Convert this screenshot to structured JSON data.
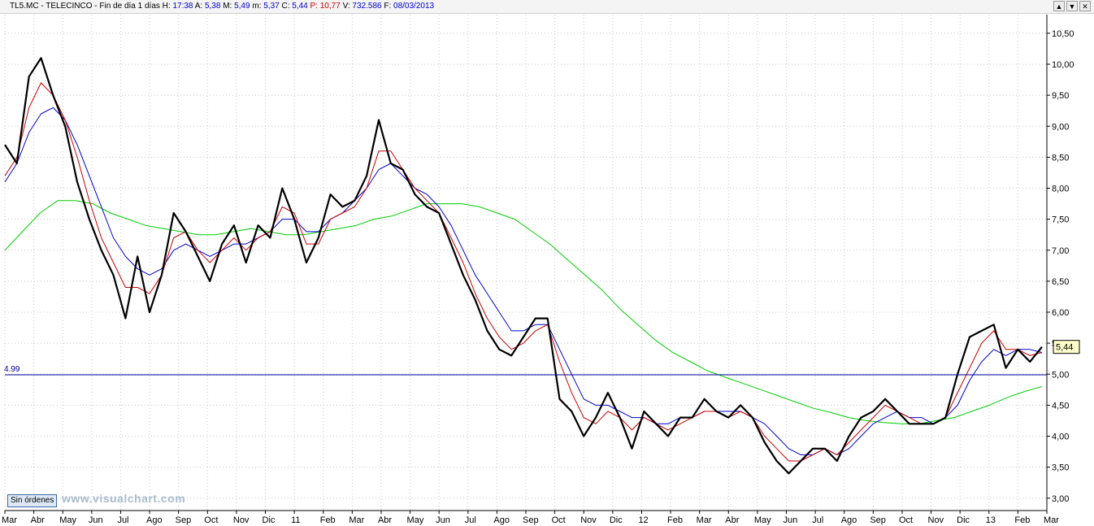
{
  "header": {
    "symbol": "TL5.MC - TELECINCO - Fin de día 1 días",
    "h_label": "H:",
    "h_value": "17:38",
    "a_label": "A:",
    "a_value": "5,38",
    "m_label": "M:",
    "m_value": "5,49",
    "mn_label": "m:",
    "mn_value": "5,37",
    "c_label": "C:",
    "c_value": "5,44",
    "p_label": "P:",
    "p_value": "10,77",
    "v_label": "V:",
    "v_value": "732.586",
    "f_label": "F:",
    "f_value": "08/03/2013",
    "buttons": [
      "▲",
      "▼",
      "✕"
    ]
  },
  "orders_label": "Sin órdenes",
  "watermark": "www.visualchart.com",
  "chart_data": {
    "type": "line",
    "y_ticks": [
      "10,50",
      "10,00",
      "9,50",
      "9,00",
      "8,50",
      "8,00",
      "7,50",
      "7,00",
      "6,50",
      "6,00",
      "5,50",
      "5,00",
      "4,50",
      "4,00",
      "3,50",
      "3,00"
    ],
    "y_tick_values": [
      10.5,
      10.0,
      9.5,
      9.0,
      8.5,
      8.0,
      7.5,
      7.0,
      6.5,
      6.0,
      5.5,
      5.0,
      4.5,
      4.0,
      3.5,
      3.0
    ],
    "ylim": [
      2.8,
      10.8
    ],
    "x_labels": [
      "Mar",
      "Abr",
      "May",
      "Jun",
      "Jul",
      "Ago",
      "Sep",
      "Oct",
      "Nov",
      "Dic",
      "11",
      "Feb",
      "Mar",
      "Abr",
      "May",
      "Jun",
      "Jul",
      "Ago",
      "Sep",
      "Oct",
      "Nov",
      "Dic",
      "12",
      "Feb",
      "Mar",
      "Abr",
      "May",
      "Jun",
      "Jul",
      "Ago",
      "Sep",
      "Oct",
      "Nov",
      "Dic",
      "13",
      "Feb",
      "Mar"
    ],
    "reference_line": {
      "value": 4.99,
      "label": "4.99",
      "color": "#000099"
    },
    "last_price_label": "5,44",
    "last_price": 5.44,
    "colors": {
      "price": "#000000",
      "ma_short": "#cc0000",
      "ma_mid": "#0000cc",
      "ma_long": "#00cc00",
      "grid": "#c8c8c8"
    },
    "series": [
      {
        "key": "price",
        "values": [
          8.7,
          8.4,
          9.8,
          10.1,
          9.5,
          9.0,
          8.1,
          7.5,
          7.0,
          6.6,
          5.9,
          6.9,
          6.0,
          6.6,
          7.6,
          7.3,
          6.9,
          6.5,
          7.1,
          7.4,
          6.8,
          7.4,
          7.2,
          8.0,
          7.5,
          6.8,
          7.2,
          7.9,
          7.7,
          7.8,
          8.2,
          9.1,
          8.4,
          8.3,
          7.9,
          7.7,
          7.6,
          7.1,
          6.6,
          6.2,
          5.7,
          5.4,
          5.3,
          5.6,
          5.9,
          5.9,
          4.6,
          4.4,
          4.0,
          4.3,
          4.7,
          4.3,
          3.8,
          4.4,
          4.2,
          4.0,
          4.3,
          4.3,
          4.6,
          4.4,
          4.3,
          4.5,
          4.3,
          3.9,
          3.6,
          3.4,
          3.6,
          3.8,
          3.8,
          3.6,
          4.0,
          4.3,
          4.4,
          4.6,
          4.4,
          4.2,
          4.2,
          4.2,
          4.3,
          5.0,
          5.6,
          5.7,
          5.8,
          5.1,
          5.4,
          5.2,
          5.44
        ]
      },
      {
        "key": "ma_short",
        "values": [
          8.2,
          8.5,
          9.3,
          9.7,
          9.5,
          9.1,
          8.5,
          7.8,
          7.2,
          6.8,
          6.4,
          6.4,
          6.3,
          6.6,
          7.2,
          7.3,
          7.0,
          6.8,
          7.0,
          7.2,
          7.0,
          7.2,
          7.3,
          7.7,
          7.6,
          7.1,
          7.1,
          7.5,
          7.6,
          7.7,
          8.0,
          8.6,
          8.6,
          8.3,
          8.0,
          7.8,
          7.6,
          7.2,
          6.8,
          6.3,
          5.9,
          5.6,
          5.4,
          5.5,
          5.7,
          5.8,
          5.2,
          4.7,
          4.3,
          4.2,
          4.4,
          4.3,
          4.1,
          4.3,
          4.2,
          4.1,
          4.2,
          4.3,
          4.4,
          4.4,
          4.3,
          4.4,
          4.3,
          4.0,
          3.8,
          3.6,
          3.6,
          3.7,
          3.8,
          3.7,
          3.9,
          4.1,
          4.3,
          4.5,
          4.4,
          4.3,
          4.2,
          4.2,
          4.3,
          4.7,
          5.1,
          5.5,
          5.7,
          5.4,
          5.4,
          5.3,
          5.35
        ]
      },
      {
        "key": "ma_mid",
        "values": [
          8.1,
          8.4,
          8.9,
          9.2,
          9.3,
          9.1,
          8.7,
          8.2,
          7.7,
          7.2,
          6.9,
          6.7,
          6.6,
          6.7,
          7.0,
          7.1,
          7.0,
          6.9,
          7.0,
          7.1,
          7.1,
          7.2,
          7.3,
          7.5,
          7.5,
          7.3,
          7.3,
          7.5,
          7.6,
          7.8,
          8.0,
          8.3,
          8.4,
          8.2,
          8.0,
          7.9,
          7.7,
          7.4,
          7.0,
          6.6,
          6.3,
          6.0,
          5.7,
          5.7,
          5.8,
          5.8,
          5.4,
          5.0,
          4.6,
          4.5,
          4.5,
          4.4,
          4.3,
          4.3,
          4.2,
          4.2,
          4.3,
          4.3,
          4.4,
          4.4,
          4.4,
          4.4,
          4.3,
          4.2,
          4.0,
          3.8,
          3.7,
          3.7,
          3.8,
          3.7,
          3.8,
          4.0,
          4.2,
          4.3,
          4.4,
          4.3,
          4.3,
          4.2,
          4.3,
          4.5,
          4.9,
          5.2,
          5.4,
          5.3,
          5.4,
          5.4,
          5.35
        ]
      },
      {
        "key": "ma_long",
        "values": [
          7.0,
          7.3,
          7.6,
          7.8,
          7.8,
          7.75,
          7.6,
          7.5,
          7.4,
          7.35,
          7.3,
          7.25,
          7.25,
          7.3,
          7.35,
          7.3,
          7.25,
          7.25,
          7.3,
          7.35,
          7.4,
          7.5,
          7.55,
          7.65,
          7.75,
          7.75,
          7.75,
          7.7,
          7.6,
          7.5,
          7.3,
          7.1,
          6.85,
          6.6,
          6.35,
          6.05,
          5.8,
          5.55,
          5.35,
          5.2,
          5.05,
          4.95,
          4.85,
          4.75,
          4.65,
          4.55,
          4.45,
          4.38,
          4.3,
          4.25,
          4.22,
          4.2,
          4.2,
          4.25,
          4.3,
          4.4,
          4.5,
          4.62,
          4.72,
          4.8
        ]
      }
    ]
  }
}
